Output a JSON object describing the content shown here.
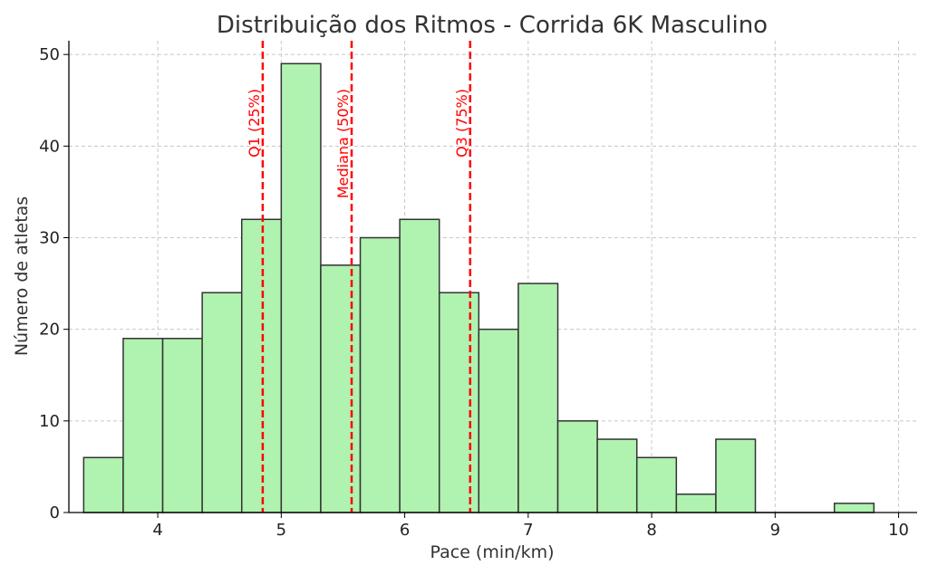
{
  "chart_data": {
    "type": "bar",
    "title": "Distribuição dos Ritmos - Corrida 6K Masculino",
    "xlabel": "Pace (min/km)",
    "ylabel": "Número de atletas",
    "xlim": [
      3.28,
      10.15
    ],
    "ylim": [
      0,
      51.5
    ],
    "x_ticks": [
      4,
      5,
      6,
      7,
      8,
      9,
      10
    ],
    "y_ticks": [
      0,
      10,
      20,
      30,
      40,
      50
    ],
    "grid": true,
    "bins": [
      {
        "start": 3.4,
        "end": 3.72,
        "count": 6
      },
      {
        "start": 3.72,
        "end": 4.04,
        "count": 19
      },
      {
        "start": 4.04,
        "end": 4.36,
        "count": 19
      },
      {
        "start": 4.36,
        "end": 4.68,
        "count": 24
      },
      {
        "start": 4.68,
        "end": 5.0,
        "count": 32
      },
      {
        "start": 5.0,
        "end": 5.32,
        "count": 49
      },
      {
        "start": 5.32,
        "end": 5.64,
        "count": 27
      },
      {
        "start": 5.64,
        "end": 5.96,
        "count": 30
      },
      {
        "start": 5.96,
        "end": 6.28,
        "count": 32
      },
      {
        "start": 6.28,
        "end": 6.6,
        "count": 24
      },
      {
        "start": 6.6,
        "end": 6.92,
        "count": 20
      },
      {
        "start": 6.92,
        "end": 7.24,
        "count": 25
      },
      {
        "start": 7.24,
        "end": 7.56,
        "count": 10
      },
      {
        "start": 7.56,
        "end": 7.88,
        "count": 8
      },
      {
        "start": 7.88,
        "end": 8.2,
        "count": 6
      },
      {
        "start": 8.2,
        "end": 8.52,
        "count": 2
      },
      {
        "start": 8.52,
        "end": 8.84,
        "count": 8
      },
      {
        "start": 8.84,
        "end": 9.16,
        "count": 0
      },
      {
        "start": 9.16,
        "end": 9.48,
        "count": 0
      },
      {
        "start": 9.48,
        "end": 9.8,
        "count": 1
      }
    ],
    "quartile_lines": [
      {
        "label": "Q1 (25%)",
        "x": 4.85
      },
      {
        "label": "Mediana (50%)",
        "x": 5.57
      },
      {
        "label": "Q3 (75%)",
        "x": 6.53
      }
    ],
    "colors": {
      "bar_fill": "#b0f2b0",
      "bar_edge": "#333333",
      "quartile_line": "#ff0000",
      "grid": "#c8c8c8"
    }
  }
}
